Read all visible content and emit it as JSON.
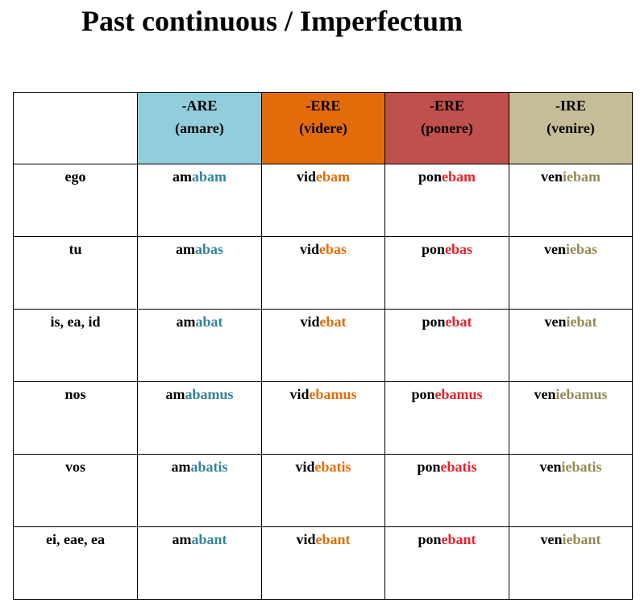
{
  "title": "Past continuous / Imperfectum",
  "columns": [
    {
      "ending": "-ARE",
      "example": "(amare)",
      "header_bg": "#92cddc",
      "header_color": "#000000",
      "suffix_color": "#31849b"
    },
    {
      "ending": "-ERE",
      "example": "(videre)",
      "header_bg": "#e36c0a",
      "header_color": "#000000",
      "suffix_color": "#e36c0a"
    },
    {
      "ending": "-ERE",
      "example": "(ponere)",
      "header_bg": "#c0504d",
      "header_color": "#000000",
      "suffix_color": "#e8202a"
    },
    {
      "ending": "-IRE",
      "example": "(venire)",
      "header_bg": "#c4bd97",
      "header_color": "#000000",
      "suffix_color": "#948a54"
    }
  ],
  "rows": [
    {
      "pronoun": "ego",
      "forms": [
        {
          "stem": "am",
          "suffix": "abam"
        },
        {
          "stem": "vid",
          "suffix": "ebam"
        },
        {
          "stem": "pon",
          "suffix": "ebam"
        },
        {
          "stem": "ven",
          "suffix": "iebam"
        }
      ]
    },
    {
      "pronoun": "tu",
      "forms": [
        {
          "stem": "am",
          "suffix": "abas"
        },
        {
          "stem": "vid",
          "suffix": "ebas"
        },
        {
          "stem": "pon",
          "suffix": "ebas"
        },
        {
          "stem": "ven",
          "suffix": "iebas"
        }
      ]
    },
    {
      "pronoun": "is, ea, id",
      "forms": [
        {
          "stem": "am",
          "suffix": "abat"
        },
        {
          "stem": "vid",
          "suffix": "ebat"
        },
        {
          "stem": "pon",
          "suffix": "ebat"
        },
        {
          "stem": "ven",
          "suffix": "iebat"
        }
      ]
    },
    {
      "pronoun": "nos",
      "forms": [
        {
          "stem": "am",
          "suffix": "abamus"
        },
        {
          "stem": "vid",
          "suffix": "ebamus"
        },
        {
          "stem": "pon",
          "suffix": "ebamus"
        },
        {
          "stem": "ven",
          "suffix": "iebamus"
        }
      ]
    },
    {
      "pronoun": "vos",
      "forms": [
        {
          "stem": "am",
          "suffix": "abatis"
        },
        {
          "stem": "vid",
          "suffix": "ebatis"
        },
        {
          "stem": "pon",
          "suffix": "ebatis"
        },
        {
          "stem": "ven",
          "suffix": "iebatis"
        }
      ]
    },
    {
      "pronoun": "ei, eae, ea",
      "forms": [
        {
          "stem": "am",
          "suffix": "abant"
        },
        {
          "stem": "vid",
          "suffix": "ebant"
        },
        {
          "stem": "pon",
          "suffix": "ebant"
        },
        {
          "stem": "ven",
          "suffix": "iebant"
        }
      ]
    }
  ]
}
